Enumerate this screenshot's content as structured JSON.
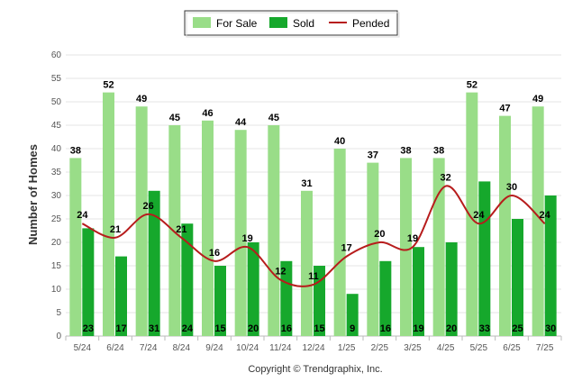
{
  "chart_data": {
    "type": "bar",
    "categories": [
      "5/24",
      "6/24",
      "7/24",
      "8/24",
      "9/24",
      "10/24",
      "11/24",
      "12/24",
      "1/25",
      "2/25",
      "3/25",
      "4/25",
      "5/25",
      "6/25",
      "7/25"
    ],
    "series": [
      {
        "name": "For Sale",
        "kind": "bar",
        "color": "#99dd88",
        "values": [
          38,
          52,
          49,
          45,
          46,
          44,
          45,
          31,
          40,
          37,
          38,
          38,
          52,
          47,
          49
        ]
      },
      {
        "name": "Sold",
        "kind": "bar",
        "color": "#16a82c",
        "values": [
          23,
          17,
          31,
          24,
          15,
          20,
          16,
          15,
          9,
          16,
          19,
          20,
          33,
          25,
          30
        ]
      },
      {
        "name": "Pended",
        "kind": "line",
        "color": "#b71c1c",
        "values": [
          24,
          21,
          26,
          21,
          16,
          19,
          12,
          11,
          17,
          20,
          19,
          32,
          24,
          30,
          24
        ]
      }
    ],
    "ylabel": "Number of Homes",
    "ylim": [
      0,
      60
    ],
    "yticks": [
      0,
      5,
      10,
      15,
      20,
      25,
      30,
      35,
      40,
      45,
      50,
      55,
      60
    ],
    "legend": "top-center",
    "grid": true
  },
  "footer": {
    "copyright": "Copyright © Trendgraphix, Inc."
  }
}
